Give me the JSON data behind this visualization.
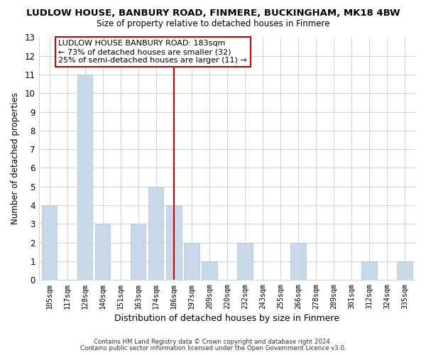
{
  "title": "LUDLOW HOUSE, BANBURY ROAD, FINMERE, BUCKINGHAM, MK18 4BW",
  "subtitle": "Size of property relative to detached houses in Finmere",
  "xlabel": "Distribution of detached houses by size in Finmere",
  "ylabel": "Number of detached properties",
  "footer_line1": "Contains HM Land Registry data © Crown copyright and database right 2024.",
  "footer_line2": "Contains public sector information licensed under the Open Government Licence v3.0.",
  "categories": [
    "105sqm",
    "117sqm",
    "128sqm",
    "140sqm",
    "151sqm",
    "163sqm",
    "174sqm",
    "186sqm",
    "197sqm",
    "209sqm",
    "220sqm",
    "232sqm",
    "243sqm",
    "255sqm",
    "266sqm",
    "278sqm",
    "289sqm",
    "301sqm",
    "312sqm",
    "324sqm",
    "335sqm"
  ],
  "values": [
    4,
    0,
    11,
    3,
    0,
    3,
    5,
    4,
    2,
    1,
    0,
    2,
    0,
    0,
    2,
    0,
    0,
    0,
    1,
    0,
    1
  ],
  "bar_color": "#c8d8e8",
  "bar_edge_color": "#b0c4d8",
  "highlight_index": 7,
  "highlight_line_color": "#cc0000",
  "ylim": [
    0,
    13
  ],
  "yticks": [
    0,
    1,
    2,
    3,
    4,
    5,
    6,
    7,
    8,
    9,
    10,
    11,
    12,
    13
  ],
  "annotation_title": "LUDLOW HOUSE BANBURY ROAD: 183sqm",
  "annotation_line1": "← 73% of detached houses are smaller (32)",
  "annotation_line2": "25% of semi-detached houses are larger (11) →",
  "annotation_box_color": "#ffffff",
  "annotation_box_edge_color": "#cc0000",
  "grid_color": "#c8d4e0",
  "background_color": "#ffffff",
  "fig_background_color": "#ffffff"
}
